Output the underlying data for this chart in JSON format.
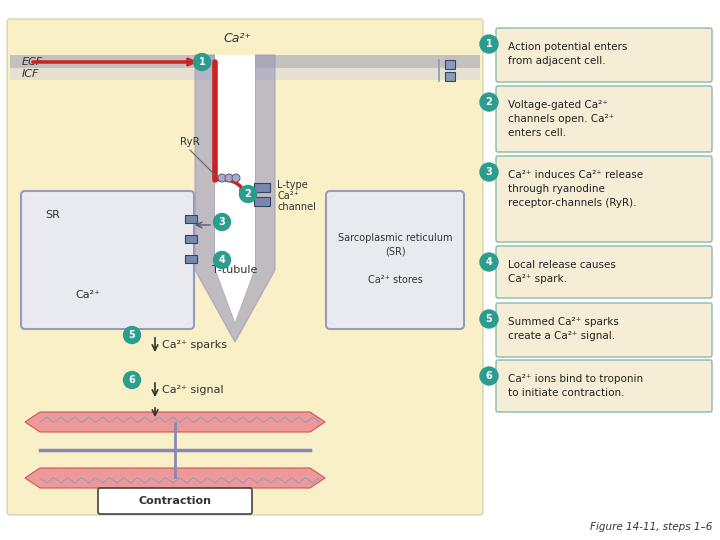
{
  "bg_color": "#FAF0C8",
  "ecf_label": "ECF",
  "icf_label": "ICF",
  "teal_color": "#2A9D8F",
  "membrane_color": "#9999BB",
  "red_color": "#CC2222",
  "sr_fill": "#E8EAF0",
  "sr_edge": "#9999BB",
  "box_fill": "#F5EDD5",
  "box_edge": "#88BBAA",
  "steps": [
    {
      "num": "1",
      "lines": [
        "Action potential enters",
        "from adjacent cell."
      ]
    },
    {
      "num": "2",
      "lines": [
        "Voltage-gated Ca²⁺",
        "channels open. Ca²⁺",
        "enters cell."
      ]
    },
    {
      "num": "3",
      "lines": [
        "Ca²⁺ induces Ca²⁺ release",
        "through ryanodine",
        "receptor-channels (RyR)."
      ]
    },
    {
      "num": "4",
      "lines": [
        "Local release causes",
        "Ca²⁺ spark."
      ]
    },
    {
      "num": "5",
      "lines": [
        "Summed Ca²⁺ sparks",
        "create a Ca²⁺ signal."
      ]
    },
    {
      "num": "6",
      "lines": [
        "Ca²⁺ ions bind to troponin",
        "to initiate contraction."
      ]
    }
  ],
  "figure_label": "Figure 14-11, steps 1–6"
}
